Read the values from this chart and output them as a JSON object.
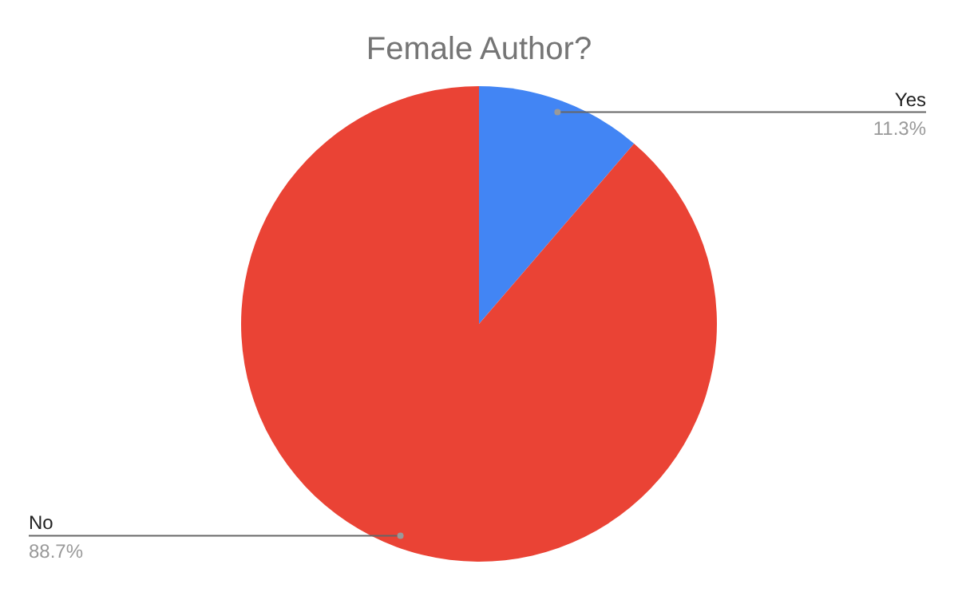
{
  "chart_data": {
    "type": "pie",
    "title": "Female Author?",
    "categories": [
      "Yes",
      "No"
    ],
    "values": [
      11.3,
      88.7
    ],
    "colors": [
      "#4285f4",
      "#ea4335"
    ],
    "value_labels": [
      "11.3%",
      "88.7%"
    ],
    "legend": false
  }
}
